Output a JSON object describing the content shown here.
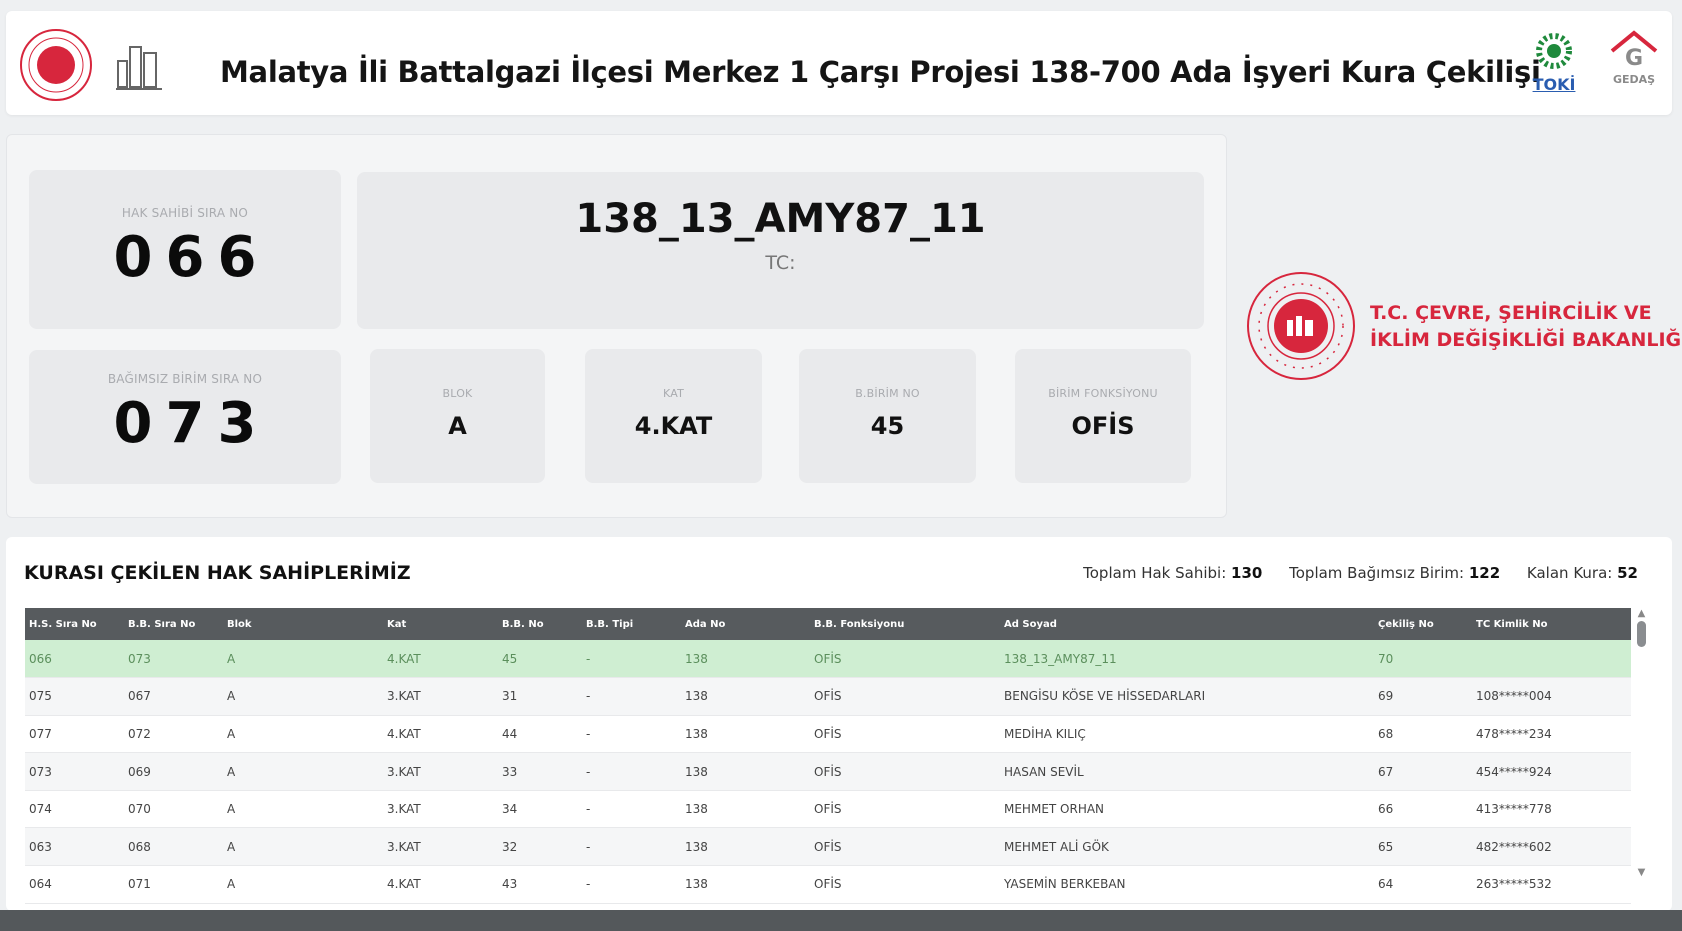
{
  "header": {
    "title": "Malatya İli Battalgazi İlçesi Merkez 1 Çarşı Projesi 138-700 Ada İşyeri Kura Çekilişi",
    "logos": [
      "ministry-seal-logo",
      "building-logo",
      "toki-logo",
      "gedas-logo"
    ],
    "toki_label": "TOKİ",
    "gedas_label": "GEDAŞ"
  },
  "draw": {
    "hak_sahibi": {
      "label": "HAK SAHİBİ SIRA NO",
      "digits": [
        "0",
        "6",
        "6"
      ]
    },
    "name": {
      "value": "138_13_AMY87_11",
      "tc_label": "TC:"
    },
    "birim": {
      "label": "BAĞIMSIZ BİRİM SIRA NO",
      "digits": [
        "0",
        "7",
        "3"
      ]
    },
    "blok": {
      "label": "BLOK",
      "value": "A"
    },
    "kat": {
      "label": "KAT",
      "value": "4.KAT"
    },
    "bbirim": {
      "label": "B.BİRİM NO",
      "value": "45"
    },
    "fonksiyon": {
      "label": "BİRİM FONKSİYONU",
      "value": "OFİS"
    }
  },
  "ministry": {
    "line1": "T.C. ÇEVRE, ŞEHİRCİLİK VE",
    "line2": "İKLİM DEĞİŞİKLİĞİ BAKANLIĞI"
  },
  "list": {
    "title": "KURASI ÇEKİLEN HAK SAHİPLERİMİZ",
    "stats": {
      "total_label": "Toplam Hak Sahibi:",
      "total": "130",
      "units_label": "Toplam Bağımsız Birim:",
      "units": "122",
      "remaining_label": "Kalan Kura:",
      "remaining": "52"
    },
    "columns": [
      "H.S. Sıra No",
      "B.B. Sıra No",
      "Blok",
      "Kat",
      "B.B. No",
      "B.B. Tipi",
      "Ada No",
      "B.B. Fonksiyonu",
      "Ad Soyad",
      "Çekiliş No",
      "TC Kimlik No"
    ],
    "rows": [
      [
        "066",
        "073",
        "A",
        "4.KAT",
        "45",
        "-",
        "138",
        "OFİS",
        "138_13_AMY87_11",
        "70",
        ""
      ],
      [
        "075",
        "067",
        "A",
        "3.KAT",
        "31",
        "-",
        "138",
        "OFİS",
        "BENGİSU KÖSE VE HİSSEDARLARI",
        "69",
        "108*****004"
      ],
      [
        "077",
        "072",
        "A",
        "4.KAT",
        "44",
        "-",
        "138",
        "OFİS",
        "MEDİHA KILIÇ",
        "68",
        "478*****234"
      ],
      [
        "073",
        "069",
        "A",
        "3.KAT",
        "33",
        "-",
        "138",
        "OFİS",
        "HASAN SEVİL",
        "67",
        "454*****924"
      ],
      [
        "074",
        "070",
        "A",
        "3.KAT",
        "34",
        "-",
        "138",
        "OFİS",
        "MEHMET ORHAN",
        "66",
        "413*****778"
      ],
      [
        "063",
        "068",
        "A",
        "3.KAT",
        "32",
        "-",
        "138",
        "OFİS",
        "MEHMET ALİ GÖK",
        "65",
        "482*****602"
      ],
      [
        "064",
        "071",
        "A",
        "4.KAT",
        "43",
        "-",
        "138",
        "OFİS",
        "YASEMİN BERKEBAN",
        "64",
        "263*****532"
      ]
    ]
  },
  "colors": {
    "accent_red": "#d7263d",
    "highlight_row": "#cfeed2",
    "table_header": "#575b5e"
  }
}
